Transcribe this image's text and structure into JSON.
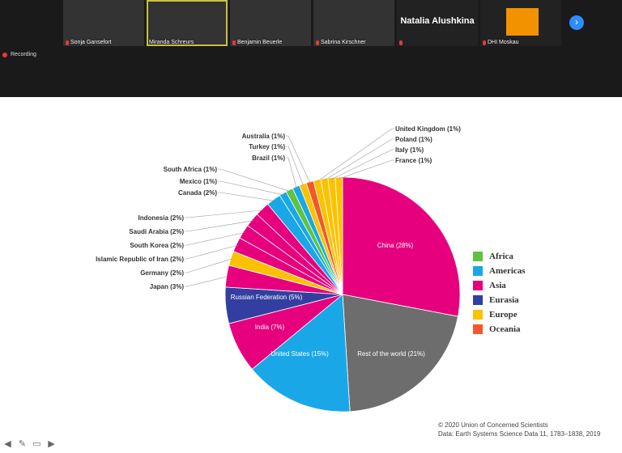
{
  "meeting": {
    "participants": [
      {
        "name": "Sonja Gansefort",
        "muted": true
      },
      {
        "name": "Miranda Schreurs",
        "muted": false
      },
      {
        "name": "Benjamin Beuerle",
        "muted": true
      },
      {
        "name": "Sabrina Kirschner",
        "muted": true
      },
      {
        "name": "Natalia Alushkina",
        "muted": true
      },
      {
        "name": "DHI Moskau",
        "muted": true
      }
    ],
    "recording_label": "Recording",
    "next_icon": "chevron-right-icon"
  },
  "slide": {
    "credit_line1": "© 2020 Union of Concerned Scientists",
    "credit_line2": "Data: Earth Systems Science Data 11, 1783–1838, 2019"
  },
  "colors": {
    "Africa": "#5dc341",
    "Americas": "#1aa7e8",
    "Asia": "#e6007e",
    "Eurasia": "#333fa0",
    "Europe": "#fcc200",
    "Oceania": "#f2592a",
    "Rest": "#6d6d6d"
  },
  "chart_data": {
    "type": "pie",
    "title": "",
    "slices": [
      {
        "label": "China (28%)",
        "value": 28,
        "region": "Asia"
      },
      {
        "label": "Rest of the world (21%)",
        "value": 21,
        "region": "Rest"
      },
      {
        "label": "United States (15%)",
        "value": 15,
        "region": "Americas"
      },
      {
        "label": "India (7%)",
        "value": 7,
        "region": "Asia"
      },
      {
        "label": "Russian Federation (5%)",
        "value": 5,
        "region": "Eurasia"
      },
      {
        "label": "Japan (3%)",
        "value": 3,
        "region": "Asia"
      },
      {
        "label": "Germany (2%)",
        "value": 2,
        "region": "Europe"
      },
      {
        "label": "Islamic Republic of Iran (2%)",
        "value": 2,
        "region": "Asia"
      },
      {
        "label": "South Korea (2%)",
        "value": 2,
        "region": "Asia"
      },
      {
        "label": "Saudi Arabia (2%)",
        "value": 2,
        "region": "Asia"
      },
      {
        "label": "Indonesia (2%)",
        "value": 2,
        "region": "Asia"
      },
      {
        "label": "Canada (2%)",
        "value": 2,
        "region": "Americas"
      },
      {
        "label": "Mexico (1%)",
        "value": 1,
        "region": "Americas"
      },
      {
        "label": "South Africa (1%)",
        "value": 1,
        "region": "Africa"
      },
      {
        "label": "Brazil (1%)",
        "value": 1,
        "region": "Americas"
      },
      {
        "label": "Turkey (1%)",
        "value": 1,
        "region": "Europe"
      },
      {
        "label": "Australia (1%)",
        "value": 1,
        "region": "Oceania"
      },
      {
        "label": "United Kingdom (1%)",
        "value": 1,
        "region": "Europe"
      },
      {
        "label": "Poland (1%)",
        "value": 1,
        "region": "Europe"
      },
      {
        "label": "Italy (1%)",
        "value": 1,
        "region": "Europe"
      },
      {
        "label": "France (1%)",
        "value": 1,
        "region": "Europe"
      }
    ],
    "legend": [
      "Africa",
      "Americas",
      "Asia",
      "Eurasia",
      "Europe",
      "Oceania"
    ],
    "legend_position": "right"
  }
}
